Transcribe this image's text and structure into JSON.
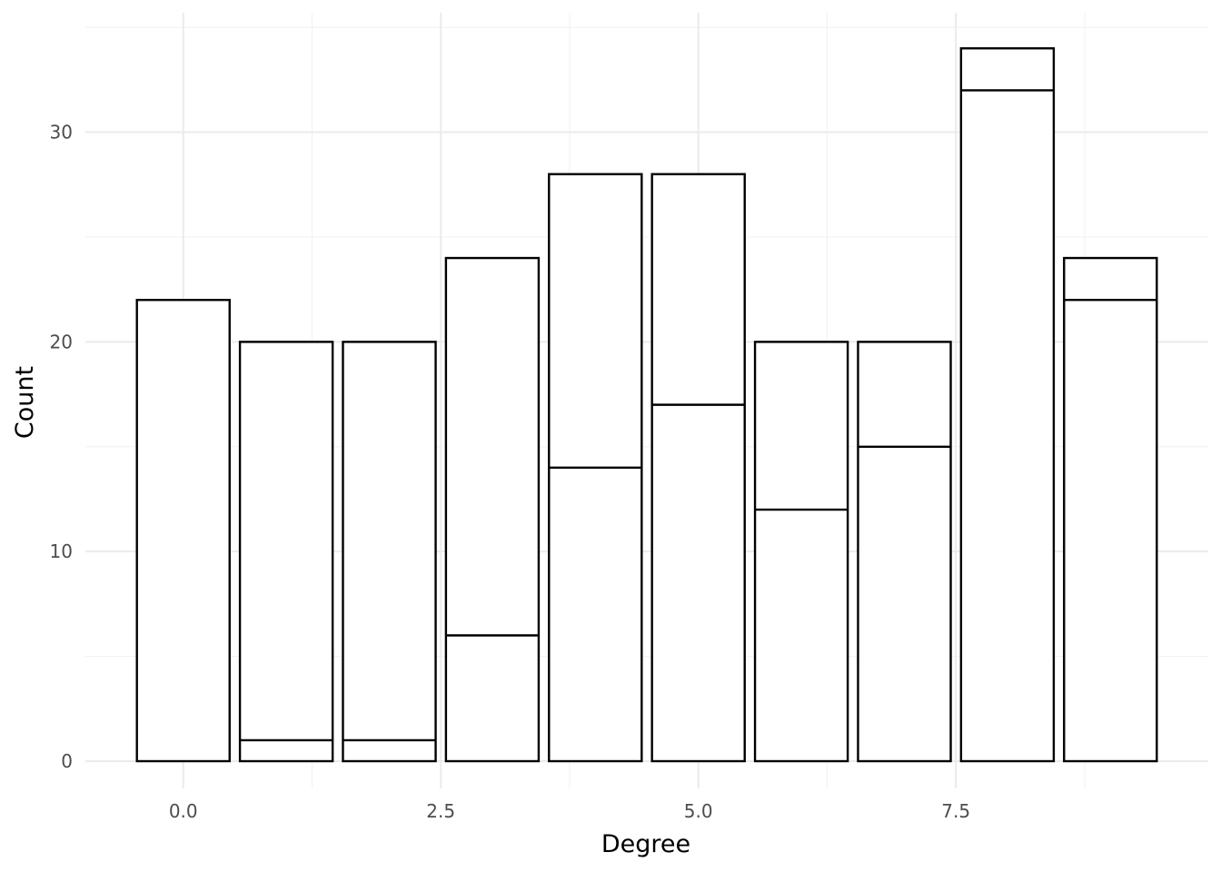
{
  "chart_data": {
    "type": "bar",
    "stacked": true,
    "xlabel": "Degree",
    "ylabel": "Count",
    "x": [
      0,
      1,
      2,
      3,
      4,
      5,
      6,
      7,
      8,
      9
    ],
    "series": [
      {
        "values": [
          22,
          1,
          1,
          6,
          14,
          17,
          12,
          15,
          32,
          22
        ]
      },
      {
        "values": [
          0,
          19,
          19,
          18,
          14,
          11,
          8,
          5,
          2,
          2
        ]
      }
    ],
    "totals": [
      22,
      20,
      20,
      24,
      28,
      28,
      20,
      20,
      34,
      24
    ],
    "xlim": [
      -0.95,
      9.95
    ],
    "ylim": [
      -1.3,
      35.7
    ],
    "x_ticks": [
      0.0,
      2.5,
      5.0,
      7.5
    ],
    "x_tick_labels": [
      "0.0",
      "2.5",
      "5.0",
      "7.5"
    ],
    "y_ticks": [
      0,
      10,
      20,
      30
    ],
    "y_tick_labels": [
      "0",
      "10",
      "20",
      "30"
    ],
    "grid": true,
    "legend": "none",
    "bar_fill": "#ffffff",
    "bar_outline": "#000000"
  }
}
